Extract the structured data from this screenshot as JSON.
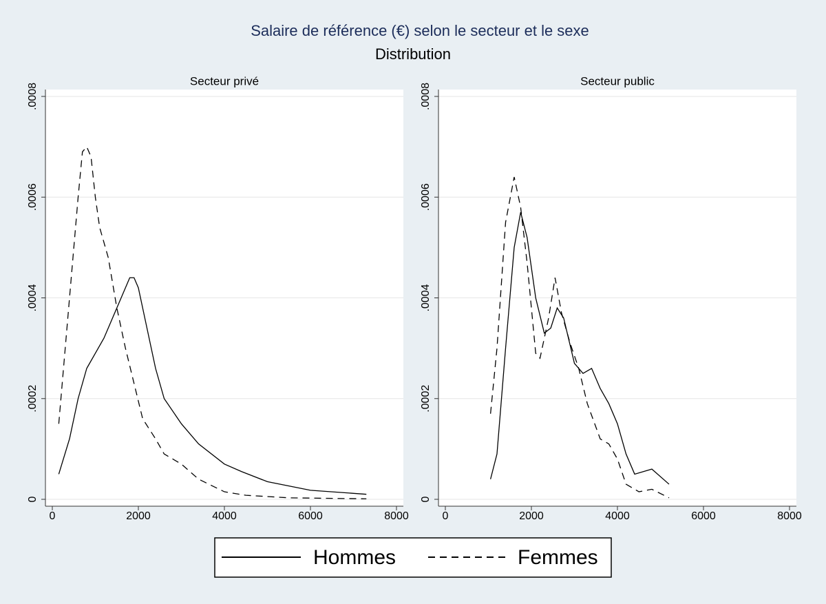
{
  "title": "Salaire de référence (€) selon le secteur et le sexe",
  "subtitle": "Distribution",
  "chart_data": [
    {
      "type": "line",
      "title": "Secteur privé",
      "xlim": [
        0,
        8000
      ],
      "xticks": [
        0,
        2000,
        4000,
        6000,
        8000
      ],
      "ylim": [
        0,
        0.0008
      ],
      "yticks": [
        0,
        {
          "value": 0.0002,
          "label": ".0002"
        },
        {
          "value": 0.0004,
          "label": ".0004"
        },
        {
          "value": 0.0006,
          "label": ".0006"
        },
        {
          "value": 0.0008,
          "label": ".0008"
        }
      ],
      "grid": true,
      "series": [
        {
          "name": "Hommes",
          "color": "#000000",
          "style": "solid",
          "x": [
            150,
            400,
            600,
            800,
            1000,
            1200,
            1400,
            1600,
            1800,
            1900,
            2000,
            2200,
            2400,
            2600,
            3000,
            3400,
            4000,
            4400,
            5000,
            6000,
            7300
          ],
          "values": [
            5e-05,
            0.00012,
            0.0002,
            0.00026,
            0.00029,
            0.00032,
            0.00036,
            0.0004,
            0.00044,
            0.00044,
            0.00042,
            0.00034,
            0.00026,
            0.0002,
            0.00015,
            0.00011,
            7e-05,
            5.5e-05,
            3.5e-05,
            1.8e-05,
            1e-05
          ]
        },
        {
          "name": "Femmes",
          "color": "#000000",
          "style": "dashed",
          "x": [
            150,
            300,
            450,
            600,
            700,
            800,
            900,
            1000,
            1100,
            1300,
            1500,
            1700,
            1900,
            2100,
            2400,
            2600,
            3000,
            3400,
            4000,
            4500,
            5500,
            7300
          ],
          "values": [
            0.00015,
            0.0003,
            0.00045,
            0.0006,
            0.00069,
            0.0007,
            0.00068,
            0.0006,
            0.00054,
            0.00048,
            0.00038,
            0.0003,
            0.00023,
            0.00016,
            0.00012,
            9e-05,
            7e-05,
            4e-05,
            1.5e-05,
            8e-06,
            3e-06,
            1e-06
          ]
        }
      ]
    },
    {
      "type": "line",
      "title": "Secteur public",
      "xlim": [
        0,
        8000
      ],
      "xticks": [
        0,
        2000,
        4000,
        6000,
        8000
      ],
      "ylim": [
        0,
        0.0008
      ],
      "yticks": [
        0,
        {
          "value": 0.0002,
          "label": ".0002"
        },
        {
          "value": 0.0004,
          "label": ".0004"
        },
        {
          "value": 0.0006,
          "label": ".0006"
        },
        {
          "value": 0.0008,
          "label": ".0008"
        }
      ],
      "grid": true,
      "series": [
        {
          "name": "Hommes",
          "color": "#000000",
          "style": "solid",
          "x": [
            1050,
            1200,
            1400,
            1600,
            1750,
            1900,
            2100,
            2300,
            2450,
            2600,
            2750,
            3000,
            3200,
            3400,
            3600,
            3800,
            4000,
            4200,
            4400,
            4800,
            5200
          ],
          "values": [
            4e-05,
            9e-05,
            0.0003,
            0.0005,
            0.00057,
            0.00052,
            0.0004,
            0.00033,
            0.00034,
            0.00038,
            0.00036,
            0.00027,
            0.00025,
            0.00026,
            0.00022,
            0.00019,
            0.00015,
            9e-05,
            5e-05,
            6e-05,
            3e-05
          ]
        },
        {
          "name": "Femmes",
          "color": "#000000",
          "style": "dashed",
          "x": [
            1050,
            1200,
            1400,
            1600,
            1750,
            1900,
            2100,
            2200,
            2400,
            2550,
            2700,
            2900,
            3100,
            3300,
            3600,
            3800,
            4000,
            4200,
            4500,
            4800,
            5200
          ],
          "values": [
            0.00017,
            0.0003,
            0.00055,
            0.00064,
            0.00058,
            0.00047,
            0.00029,
            0.00028,
            0.00036,
            0.00044,
            0.00037,
            0.00031,
            0.00026,
            0.00019,
            0.00012,
            0.00011,
            8e-05,
            3e-05,
            1.5e-05,
            2e-05,
            3e-06
          ]
        }
      ]
    }
  ]
}
